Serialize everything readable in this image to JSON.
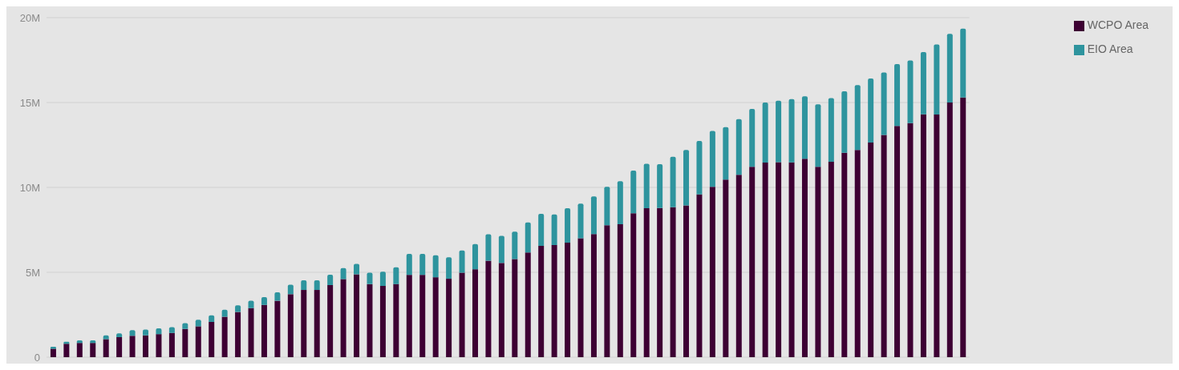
{
  "chart_data": {
    "type": "bar",
    "stacked": true,
    "categories": [
      null,
      null,
      null,
      null,
      null,
      null,
      null,
      null,
      null,
      null,
      null,
      null,
      null,
      null,
      null,
      null,
      null,
      null,
      null,
      null,
      null,
      null,
      null,
      null,
      null,
      null,
      null,
      null,
      null,
      null,
      null,
      null,
      null,
      null,
      null,
      null,
      null,
      null,
      null,
      null,
      null,
      null,
      null,
      null,
      null,
      null,
      null,
      null,
      null,
      null,
      null,
      null,
      null,
      null,
      null,
      null,
      null,
      null,
      null,
      null,
      null,
      null,
      null,
      null,
      null,
      null,
      null,
      null,
      null,
      null
    ],
    "series": [
      {
        "name": "WCPO Area",
        "color": "#3d0033",
        "values": [
          500000,
          790000,
          840000,
          840000,
          1060000,
          1180000,
          1260000,
          1280000,
          1360000,
          1430000,
          1660000,
          1820000,
          2070000,
          2380000,
          2660000,
          2890000,
          3080000,
          3320000,
          3710000,
          3960000,
          3960000,
          4250000,
          4600000,
          4880000,
          4300000,
          4200000,
          4310000,
          4850000,
          4850000,
          4710000,
          4620000,
          4980000,
          5180000,
          5680000,
          5550000,
          5780000,
          6170000,
          6560000,
          6600000,
          6750000,
          7000000,
          7250000,
          7770000,
          7830000,
          8480000,
          8770000,
          8780000,
          8830000,
          8940000,
          9590000,
          10030000,
          10460000,
          10740000,
          11220000,
          11460000,
          11480000,
          11470000,
          11690000,
          11220000,
          11510000,
          12040000,
          12200000,
          12640000,
          13090000,
          13620000,
          13790000,
          14310000,
          14290000,
          15000000,
          15300000
        ]
      },
      {
        "name": "EIO Area",
        "color": "#2e949e",
        "values": [
          110000,
          120000,
          150000,
          150000,
          220000,
          220000,
          330000,
          350000,
          340000,
          340000,
          350000,
          380000,
          400000,
          420000,
          400000,
          430000,
          460000,
          500000,
          560000,
          570000,
          570000,
          610000,
          650000,
          620000,
          680000,
          840000,
          980000,
          1230000,
          1230000,
          1290000,
          1270000,
          1310000,
          1480000,
          1560000,
          1600000,
          1610000,
          1770000,
          1880000,
          1810000,
          2020000,
          2050000,
          2220000,
          2270000,
          2530000,
          2510000,
          2620000,
          2590000,
          2970000,
          3270000,
          3140000,
          3300000,
          3090000,
          3280000,
          3400000,
          3540000,
          3630000,
          3730000,
          3670000,
          3670000,
          3750000,
          3620000,
          3830000,
          3770000,
          3680000,
          3640000,
          3690000,
          3660000,
          4130000,
          4040000,
          4050000
        ]
      }
    ],
    "ylim": [
      0,
      20000000
    ],
    "yticks": [
      {
        "value": 0,
        "label": "0"
      },
      {
        "value": 5000000,
        "label": "5M"
      },
      {
        "value": 10000000,
        "label": "10M"
      },
      {
        "value": 15000000,
        "label": "15M"
      },
      {
        "value": 20000000,
        "label": "20M"
      }
    ],
    "grid": "y",
    "legend": "top right",
    "tick_labels": "y"
  }
}
